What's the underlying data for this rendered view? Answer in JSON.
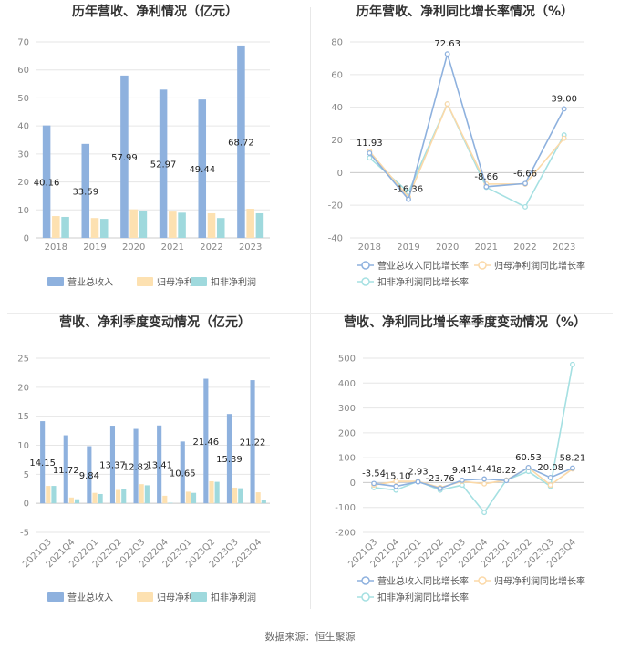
{
  "footer": {
    "source": "数据来源：恒生聚源"
  },
  "colors": {
    "revenue": "#8eb1de",
    "net_profit": "#fde1b1",
    "deducted": "#9fd9dd"
  },
  "chart_data": [
    {
      "id": "annual_bar",
      "type": "bar",
      "title": "历年营收、净利情况（亿元）",
      "categories": [
        "2018",
        "2019",
        "2020",
        "2021",
        "2022",
        "2023"
      ],
      "series": [
        {
          "name": "营业总收入",
          "values": [
            40.16,
            33.59,
            57.99,
            52.97,
            49.44,
            68.72
          ],
          "labels": [
            "40.16",
            "33.59",
            "57.99",
            "52.97",
            "49.44",
            "68.72"
          ]
        },
        {
          "name": "归母净利润",
          "values": [
            7.8,
            7.1,
            10.2,
            9.4,
            8.8,
            10.4
          ]
        },
        {
          "name": "扣非净利润",
          "values": [
            7.5,
            6.8,
            9.7,
            9.0,
            7.1,
            8.8
          ]
        }
      ],
      "ylim": [
        0,
        70
      ],
      "yticks": [
        "0",
        "10",
        "20",
        "30",
        "40",
        "50",
        "60",
        "70"
      ]
    },
    {
      "id": "annual_line",
      "type": "line",
      "title": "历年营收、净利同比增长率情况（%）",
      "categories": [
        "2018",
        "2019",
        "2020",
        "2021",
        "2022",
        "2023"
      ],
      "series": [
        {
          "name": "营业总收入同比增长率",
          "values": [
            11.93,
            -16.36,
            72.63,
            -8.66,
            -6.66,
            39.0
          ],
          "labels": [
            "11.93",
            "-16.36",
            "72.63",
            "-8.66",
            "-6.66",
            "39.00"
          ]
        },
        {
          "name": "归母净利润同比增长率",
          "values": [
            13,
            -15,
            42,
            -7,
            -7,
            21
          ]
        },
        {
          "name": "扣非净利润同比增长率",
          "values": [
            9,
            -12,
            42,
            -9,
            -21,
            23
          ]
        }
      ],
      "ylim": [
        -40,
        80
      ],
      "yticks": [
        "-40",
        "-20",
        "0",
        "20",
        "40",
        "60",
        "80"
      ]
    },
    {
      "id": "quarter_bar",
      "type": "bar",
      "title": "营收、净利季度变动情况（亿元）",
      "categories": [
        "2021Q3",
        "2021Q4",
        "2022Q1",
        "2022Q2",
        "2022Q3",
        "2022Q4",
        "2023Q1",
        "2023Q2",
        "2023Q3",
        "2023Q4"
      ],
      "series": [
        {
          "name": "营业总收入",
          "values": [
            14.15,
            11.72,
            9.84,
            13.37,
            12.82,
            13.41,
            10.65,
            21.46,
            15.39,
            21.22
          ],
          "labels": [
            "14.15",
            "11.72",
            "9.84",
            "13.37",
            "12.82",
            "13.41",
            "10.65",
            "21.46",
            "15.39",
            "21.22"
          ]
        },
        {
          "name": "归母净利润",
          "values": [
            3.0,
            1.0,
            1.8,
            2.3,
            3.3,
            1.3,
            2.0,
            3.8,
            2.7,
            1.9
          ]
        },
        {
          "name": "扣非净利润",
          "values": [
            3.0,
            0.7,
            1.6,
            2.4,
            3.1,
            0.1,
            1.8,
            3.7,
            2.6,
            0.6
          ]
        }
      ],
      "ylim": [
        -5,
        25
      ],
      "yticks": [
        "-5",
        "0",
        "5",
        "10",
        "15",
        "20",
        "25"
      ]
    },
    {
      "id": "quarter_line",
      "type": "line",
      "title": "营收、净利同比增长率季度变动情况（%）",
      "categories": [
        "2021Q3",
        "2021Q4",
        "2022Q1",
        "2022Q2",
        "2022Q3",
        "2022Q4",
        "2023Q1",
        "2023Q2",
        "2023Q3",
        "2023Q4"
      ],
      "series": [
        {
          "name": "营业总收入同比增长率",
          "values": [
            -3.54,
            -15.1,
            2.93,
            -23.76,
            9.41,
            14.41,
            8.22,
            60.53,
            20.08,
            58.21
          ],
          "labels": [
            "-3.54",
            "-15.10",
            "2.93",
            "-23.76",
            "9.41",
            "14.41",
            "8.22",
            "60.53",
            "20.08",
            "58.21"
          ]
        },
        {
          "name": "归母净利润同比增长率",
          "values": [
            -10,
            5,
            5,
            -20,
            5,
            -5,
            10,
            60,
            -10,
            55
          ]
        },
        {
          "name": "扣非净利润同比增长率",
          "values": [
            -20,
            -30,
            5,
            -30,
            -10,
            -120,
            10,
            45,
            -15,
            475
          ]
        }
      ],
      "ylim": [
        -200,
        500
      ],
      "yticks": [
        "-200",
        "-100",
        "0",
        "100",
        "200",
        "300",
        "400",
        "500"
      ]
    }
  ]
}
